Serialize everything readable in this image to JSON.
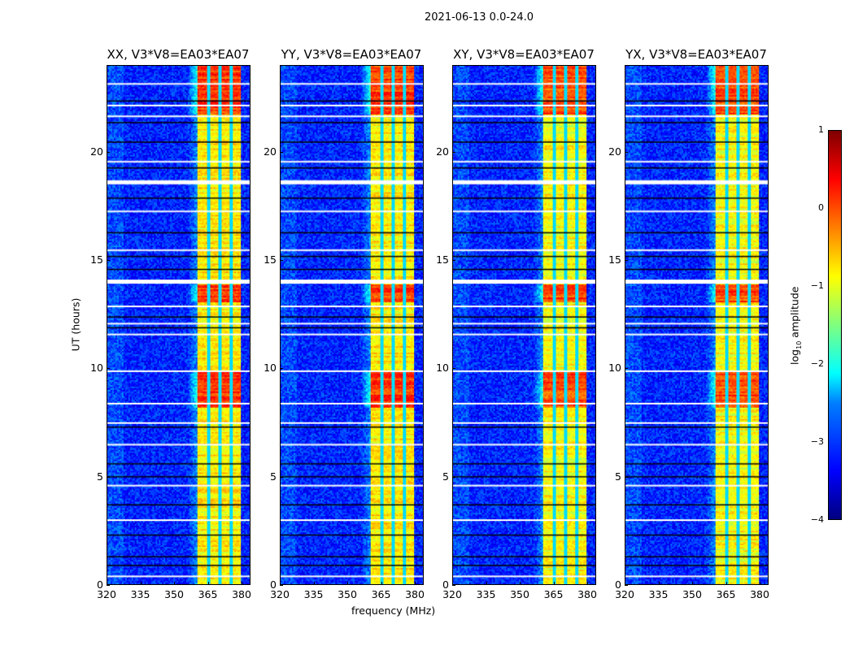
{
  "chart_data": {
    "type": "heatmap",
    "title": "2021-06-13 0.0-24.0",
    "xlabel": "frequency (MHz)",
    "ylabel": "UT (hours)",
    "xlim": [
      320,
      384
    ],
    "ylim": [
      0,
      24
    ],
    "xticks": [
      "320",
      "335",
      "350",
      "365",
      "380"
    ],
    "yticks": [
      "0",
      "5",
      "10",
      "15",
      "20"
    ],
    "panels": [
      {
        "title": "XX, V3*V8=EA03*EA07"
      },
      {
        "title": "YY, V3*V8=EA03*EA07"
      },
      {
        "title": "XY, V3*V8=EA03*EA07"
      },
      {
        "title": "YX, V3*V8=EA03*EA07"
      }
    ],
    "colorbar": {
      "label_main": "log",
      "label_sub": "10",
      "label_rest": " amplitude",
      "range": [
        -4,
        1
      ],
      "ticks": [
        "1",
        "0",
        "−1",
        "−2",
        "−3",
        "−4"
      ],
      "colormap": "jet"
    },
    "background_level": -3.2,
    "band_mhz": [
      360,
      380
    ],
    "band_level": -0.8,
    "subband_gaps_mhz": [
      365.5,
      370.5,
      375.5
    ],
    "high_amplitude_hours": [
      [
        8.2,
        9.9
      ],
      [
        13.1,
        13.9
      ],
      [
        21.8,
        24.0
      ]
    ],
    "flagged_white_hours": [
      0.4,
      3.0,
      4.6,
      6.5,
      7.5,
      8.4,
      9.9,
      11.6,
      12.1,
      12.9,
      14.1,
      15.5,
      17.3,
      18.7,
      19.6,
      21.7,
      22.2,
      23.2
    ],
    "flagged_black_hours": [
      0.9,
      1.3,
      2.3,
      3.7,
      5.0,
      5.6,
      7.3,
      11.9,
      12.4,
      14.6,
      15.2,
      16.3,
      17.9,
      19.3,
      20.5,
      21.4,
      22.4
    ]
  }
}
